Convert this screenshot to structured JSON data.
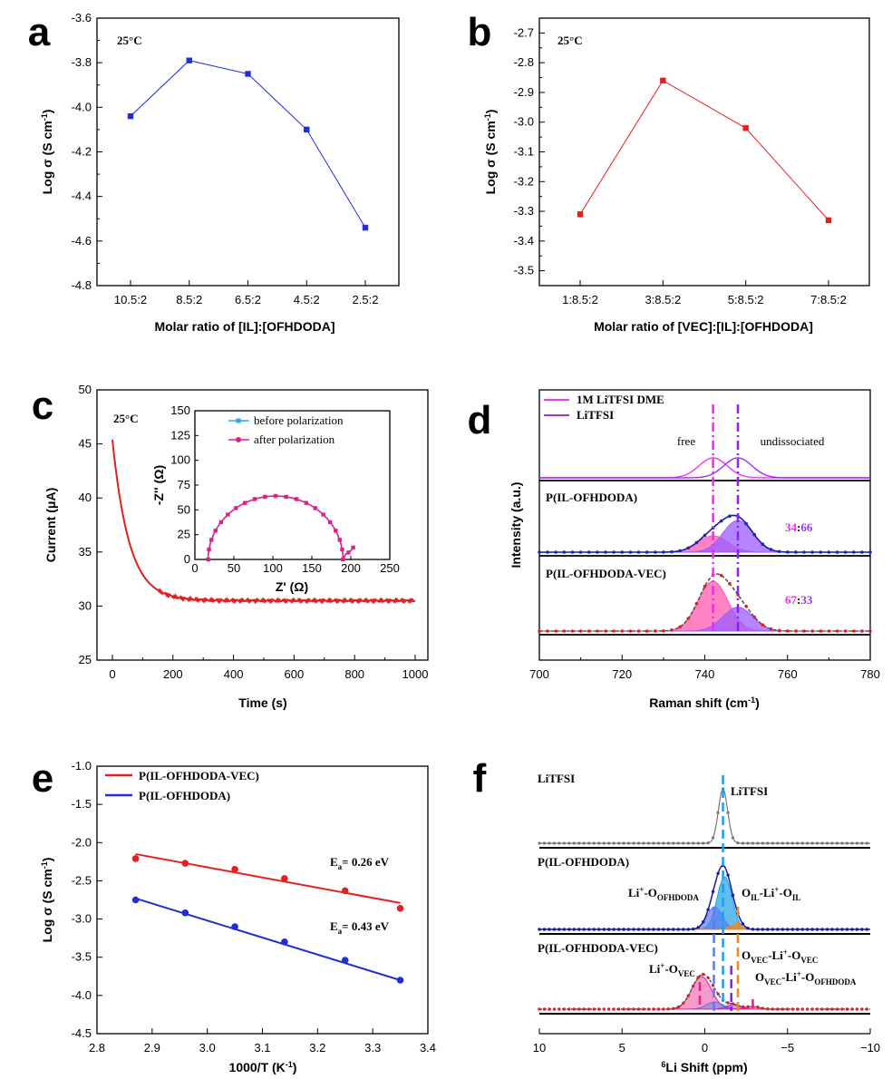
{
  "chart_data": [
    {
      "id": "a",
      "panel_label": "a",
      "type": "line",
      "categories": [
        "10.5:2",
        "8.5:2",
        "6.5:2",
        "4.5:2",
        "2.5:2"
      ],
      "values": [
        -4.04,
        -3.79,
        -3.85,
        -4.1,
        -4.54
      ],
      "ylim": [
        -4.8,
        -3.6
      ],
      "yticks": [
        "-3.6",
        "-3.8",
        "-4.0",
        "-4.2",
        "-4.4",
        "-4.6",
        "-4.8"
      ],
      "xlabel": "Molar ratio of  [IL]:[OFHDODA]",
      "ylabel_main": "Log σ (S cm",
      "ylabel_sup": "-1",
      "ylabel_end": ")",
      "annotation": "25°C",
      "color": "#1f2fd6"
    },
    {
      "id": "b",
      "panel_label": "b",
      "type": "line",
      "categories": [
        "1:8.5:2",
        "3:8.5:2",
        "5:8.5:2",
        "7:8.5:2"
      ],
      "values": [
        -3.31,
        -2.86,
        -3.02,
        -3.33
      ],
      "ylim": [
        -3.5,
        -2.7
      ],
      "yticks": [
        "-2.7",
        "-2.8",
        "-2.9",
        "-3.0",
        "-3.1",
        "-3.2",
        "-3.3",
        "-3.4",
        "-3.5"
      ],
      "xlabel": "Molar ratio of  [VEC]:[IL]:[OFHDODA]",
      "ylabel_main": "Log σ (S cm",
      "ylabel_sup": "-1",
      "ylabel_end": ")",
      "annotation": "25°C",
      "color": "#e32020"
    },
    {
      "id": "c",
      "panel_label": "c",
      "type": "line",
      "xlim": [
        0,
        1000
      ],
      "ylim": [
        25,
        50
      ],
      "xticks": [
        "0",
        "200",
        "400",
        "600",
        "800",
        "1000"
      ],
      "yticks": [
        "25",
        "30",
        "35",
        "40",
        "45",
        "50"
      ],
      "xlabel": "Time (s)",
      "ylabel": "Current (μA)",
      "annotation": "25°C",
      "color": "#e32020",
      "decay": {
        "i_inf": 30.5,
        "i0": 45.4,
        "tau": 55
      },
      "inset": {
        "xlim": [
          0,
          250
        ],
        "ylim": [
          0,
          150
        ],
        "xticks": [
          "0",
          "50",
          "100",
          "150",
          "200",
          "250"
        ],
        "yticks": [
          "0",
          "25",
          "50",
          "75",
          "100",
          "125",
          "150"
        ],
        "xlabel": "Z' (Ω)",
        "ylabel": "-Z'' (Ω)",
        "semicircle": {
          "r_start": 17,
          "r_end": 190,
          "peak": 64
        },
        "tail_end": [
          203,
          12
        ],
        "series": [
          {
            "name": "before polarization",
            "color": "#2aa6e0"
          },
          {
            "name": "after polarization",
            "color": "#e0208a"
          }
        ]
      }
    },
    {
      "id": "d",
      "panel_label": "d",
      "type": "line",
      "xlim": [
        700,
        780
      ],
      "xticks": [
        "700",
        "720",
        "740",
        "760",
        "780"
      ],
      "xlabel_main": "Raman shift (cm",
      "xlabel_sup": "-1",
      "xlabel_end": ")",
      "ylabel": "Intensity (a.u.)",
      "free_position": 742,
      "undissociated_position": 748,
      "legend": [
        {
          "name": "1M LiTFSI DME",
          "color": "#ff30ff"
        },
        {
          "name": "LiTFSI",
          "color": "#9b30ff"
        }
      ],
      "labels": {
        "free": "free",
        "undissociated": "undissociated"
      },
      "subpanels": [
        {
          "name": "",
          "peaks": [
            {
              "center": 742,
              "amp": 1.0,
              "color": "#ff30ff"
            },
            {
              "center": 748,
              "amp": 1.0,
              "color": "#9b30ff"
            }
          ]
        },
        {
          "name": "P(IL-OFHDODA)",
          "ratio_a": "34",
          "ratio_sep": ":",
          "ratio_b": "66",
          "peaks": [
            {
              "center": 742,
              "amp": 0.52,
              "color": "#ff5ab0"
            },
            {
              "center": 748,
              "amp": 1.0,
              "color": "#9b5cff"
            }
          ]
        },
        {
          "name": "P(IL-OFHDODA-VEC)",
          "ratio_a": "67",
          "ratio_sep": ":",
          "ratio_b": "33",
          "peaks": [
            {
              "center": 742,
              "amp": 1.0,
              "color": "#ff5ab0"
            },
            {
              "center": 748,
              "amp": 0.48,
              "color": "#9b5cff"
            }
          ]
        }
      ]
    },
    {
      "id": "e",
      "panel_label": "e",
      "type": "scatter",
      "xlim": [
        2.8,
        3.4
      ],
      "ylim": [
        -4.5,
        -1.0
      ],
      "xticks": [
        "2.8",
        "2.9",
        "3.0",
        "3.1",
        "3.2",
        "3.3",
        "3.4"
      ],
      "yticks": [
        "-1.0",
        "-1.5",
        "-2.0",
        "-2.5",
        "-3.0",
        "-3.5",
        "-4.0",
        "-4.5"
      ],
      "xlabel_main": "1000/T (K",
      "xlabel_sup": "-1",
      "xlabel_end": ")",
      "ylabel_main": "Log σ (S cm",
      "ylabel_sup": "-1",
      "ylabel_end": ")",
      "x": [
        2.87,
        2.96,
        3.05,
        3.14,
        3.25,
        3.35
      ],
      "series": [
        {
          "name": "P(IL-OFHDODA-VEC)",
          "color": "#e32020",
          "values": [
            -2.21,
            -2.27,
            -2.35,
            -2.47,
            -2.63,
            -2.86
          ],
          "fit": [
            -2.15,
            -2.79
          ],
          "ea_label": "E",
          "ea_sub": "a",
          "ea_value": "= 0.26 eV"
        },
        {
          "name": "P(IL-OFHDODA)",
          "color": "#1f2fd6",
          "values": [
            -2.75,
            -2.92,
            -3.1,
            -3.3,
            -3.54,
            -3.8
          ],
          "fit": [
            -2.73,
            -3.8
          ],
          "ea_label": "E",
          "ea_sub": "a",
          "ea_value": "= 0.43 eV"
        }
      ]
    },
    {
      "id": "f",
      "panel_label": "f",
      "type": "line",
      "xlim": [
        10,
        -10
      ],
      "xticks": [
        "10",
        "5",
        "0",
        "−5",
        "−10"
      ],
      "xlabel_sup": "6",
      "xlabel_main": "Li Shift (ppm)",
      "subpanels": [
        {
          "name": "LiTFSI"
        },
        {
          "name": "P(IL-OFHDODA)"
        },
        {
          "name": "P(IL-OFHDODA-VEC)"
        }
      ],
      "labels": {
        "litfsi": "LiTFSI",
        "li_ofhdoda": {
          "a": "Li",
          "sup": "+",
          "b": "-O",
          "sub": "OFHDODA"
        },
        "oil_li_oil": {
          "a": "O",
          "sub1": "IL",
          "b": "-Li",
          "sup": "+",
          "c": "-O",
          "sub2": "IL"
        },
        "ovec_li_ovec": {
          "a": "O",
          "sub1": "VEC",
          "b": "-Li",
          "sup": "+",
          "c": "-O",
          "sub2": "VEC"
        },
        "li_ovec": {
          "a": "Li",
          "sup": "+",
          "b": "-O",
          "sub": "VEC"
        },
        "ovec_li_oofhdoda": {
          "a": "O",
          "sub1": "VEC",
          "b": "-Li",
          "sup": "+",
          "c": "-O",
          "sub2": "OFHDODA"
        }
      },
      "colors": {
        "litfsi": "#1ea0e8",
        "ofhdoda": "#5a7cf0",
        "il": "#f08a1e",
        "vec": "#8a1ee0",
        "li_vec": "#e8208a",
        "fit_dark": "#1a1aa0",
        "data_red": "#e32020"
      }
    }
  ]
}
